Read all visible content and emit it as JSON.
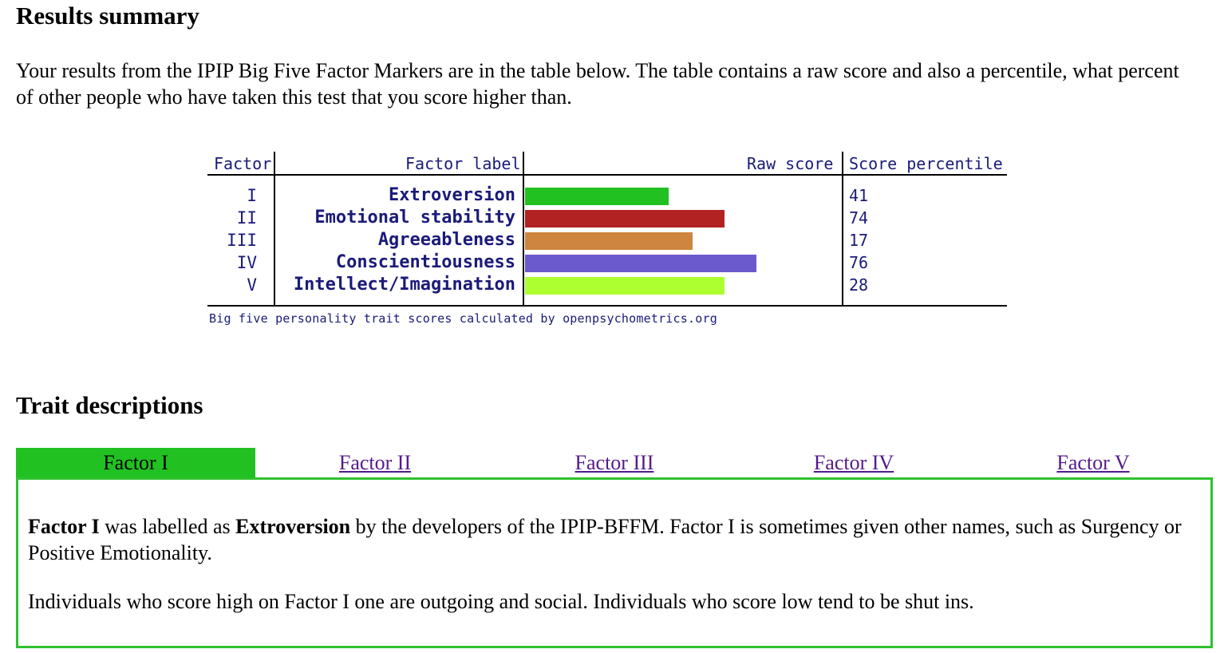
{
  "results_heading": "Results summary",
  "intro_text": "Your results from the IPIP Big Five Factor Markers are in the table below. The table contains a raw score and also a percentile, what percent of other people who have taken this test that you score higher than.",
  "score_table": {
    "headers": {
      "factor": "Factor",
      "factor_label": "Factor label",
      "raw_score": "Raw score",
      "score_percentile": "Score percentile"
    },
    "rows": [
      {
        "factor": "I",
        "label": "Extroversion",
        "raw_score_fraction": 0.45,
        "percentile": "41",
        "color": "#22c122"
      },
      {
        "factor": "II",
        "label": "Emotional stability",
        "raw_score_fraction": 0.625,
        "percentile": "74",
        "color": "#b22222"
      },
      {
        "factor": "III",
        "label": "Agreeableness",
        "raw_score_fraction": 0.525,
        "percentile": "17",
        "color": "#cd853f"
      },
      {
        "factor": "IV",
        "label": "Conscientiousness",
        "raw_score_fraction": 0.725,
        "percentile": "76",
        "color": "#6a5acd"
      },
      {
        "factor": "V",
        "label": "Intellect/Imagination",
        "raw_score_fraction": 0.625,
        "percentile": "28",
        "color": "#adff2f"
      }
    ],
    "credit": "Big five personality trait scores calculated by openpsychometrics.org"
  },
  "trait_heading": "Trait descriptions",
  "tabs": [
    {
      "label": "Factor I",
      "active": true
    },
    {
      "label": "Factor II",
      "active": false
    },
    {
      "label": "Factor III",
      "active": false
    },
    {
      "label": "Factor IV",
      "active": false
    },
    {
      "label": "Factor V",
      "active": false
    }
  ],
  "panel": {
    "p1_factor": "Factor I",
    "p1_mid": " was labelled as ",
    "p1_label": "Extroversion",
    "p1_rest": " by the developers of the IPIP-BFFM. Factor I is sometimes given other names, such as Surgency or Positive Emotionality.",
    "p2": "Individuals who score high on Factor I one are outgoing and social. Individuals who score low tend to be shut ins."
  },
  "colors": {
    "accent_green": "#22c122",
    "panel_border": "#2fc12f",
    "link": "#551a8b"
  }
}
